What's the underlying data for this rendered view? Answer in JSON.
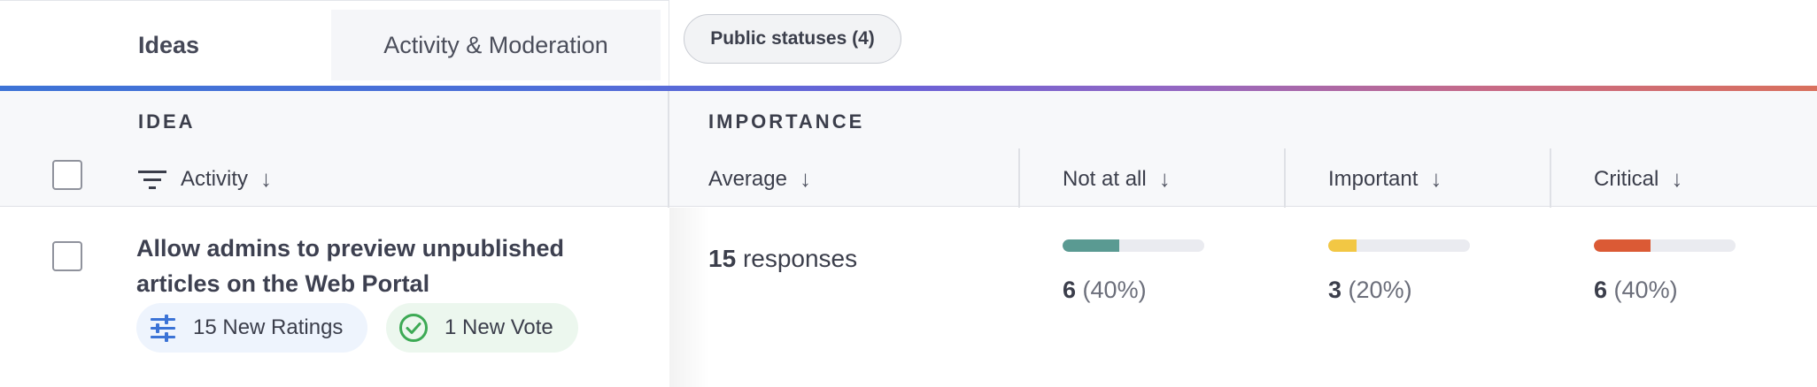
{
  "tabs": [
    {
      "label": "Ideas",
      "active": true
    },
    {
      "label": "Activity & Moderation",
      "active": false
    }
  ],
  "status_filter": {
    "label": "Public statuses (4)"
  },
  "header": {
    "idea_section": "IDEA",
    "importance_section": "IMPORTANCE",
    "sort_label": "Activity",
    "columns": {
      "average": "Average",
      "not_at_all": "Not at all",
      "important": "Important",
      "critical": "Critical"
    }
  },
  "row": {
    "title_line1": "Allow admins to preview unpublished",
    "title_line2": "articles on the Web Portal",
    "ratings_chip": "15 New Ratings",
    "votes_chip": "1 New Vote",
    "responses_count": "15",
    "responses_label": "responses",
    "not_at_all": {
      "count": "6",
      "pct": "(40%)",
      "fraction": 0.4,
      "color": "#5a9a92"
    },
    "important": {
      "count": "3",
      "pct": "(20%)",
      "fraction": 0.2,
      "color": "#f2c744"
    },
    "critical": {
      "count": "6",
      "pct": "(40%)",
      "fraction": 0.4,
      "color": "#db5a35"
    }
  },
  "icons": {
    "filter": "filter-lines-icon",
    "sort": "arrow-down-icon",
    "ratings": "sliders-icon",
    "vote": "check-circle-icon"
  },
  "colors": {
    "ratings_icon": "#3b73d6",
    "vote_icon": "#3daa55"
  }
}
